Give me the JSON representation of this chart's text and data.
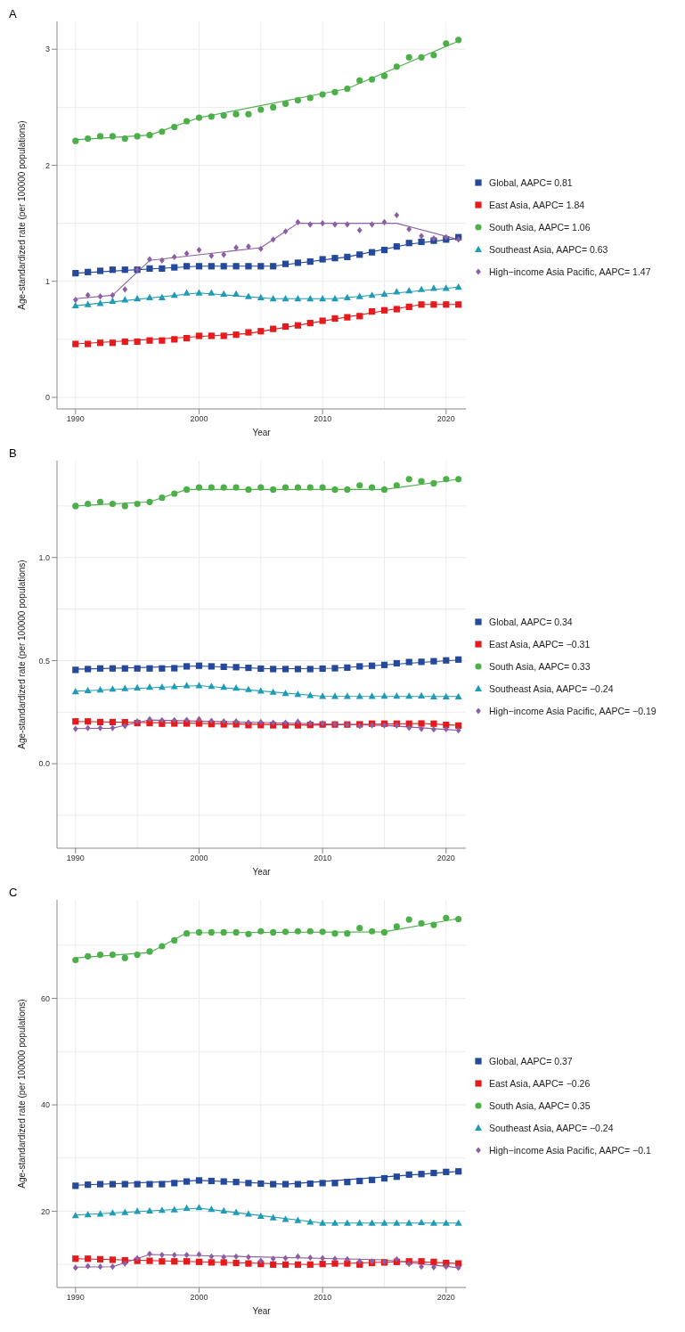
{
  "chart_data": [
    {
      "type": "scatter",
      "title": "A",
      "xlabel": "Year",
      "ylabel": "Age-standardized rate (per 100000 populations)",
      "x": [
        1990,
        1991,
        1992,
        1993,
        1994,
        1995,
        1996,
        1997,
        1998,
        1999,
        2000,
        2001,
        2002,
        2003,
        2004,
        2005,
        2006,
        2007,
        2008,
        2009,
        2010,
        2011,
        2012,
        2013,
        2014,
        2015,
        2016,
        2017,
        2018,
        2019,
        2020,
        2021
      ],
      "xlim": [
        1988.5,
        2021.6
      ],
      "xticks": [
        1990,
        2000,
        2010,
        2020
      ],
      "ylim": [
        -0.1,
        3.24
      ],
      "yticks": [
        0,
        1,
        2,
        3
      ],
      "grid": true,
      "legend": "right",
      "series": [
        {
          "name": "Global, AAPC= 0.81",
          "color": "#24489a",
          "marker": "square",
          "values": [
            1.07,
            1.08,
            1.09,
            1.1,
            1.1,
            1.1,
            1.11,
            1.11,
            1.12,
            1.13,
            1.13,
            1.13,
            1.13,
            1.13,
            1.13,
            1.13,
            1.13,
            1.15,
            1.16,
            1.17,
            1.19,
            1.2,
            1.21,
            1.23,
            1.25,
            1.27,
            1.3,
            1.33,
            1.34,
            1.35,
            1.36,
            1.38
          ]
        },
        {
          "name": "East Asia, AAPC= 1.84",
          "color": "#e41a1c",
          "marker": "square",
          "values": [
            0.46,
            0.46,
            0.47,
            0.47,
            0.48,
            0.48,
            0.49,
            0.49,
            0.5,
            0.51,
            0.53,
            0.53,
            0.53,
            0.54,
            0.56,
            0.57,
            0.59,
            0.61,
            0.62,
            0.64,
            0.66,
            0.68,
            0.69,
            0.7,
            0.74,
            0.75,
            0.76,
            0.78,
            0.8,
            0.8,
            0.8,
            0.8
          ]
        },
        {
          "name": "South Asia, AAPC= 1.06",
          "color": "#4daf4a",
          "marker": "circle",
          "values": [
            2.21,
            2.23,
            2.25,
            2.25,
            2.23,
            2.25,
            2.26,
            2.29,
            2.33,
            2.38,
            2.41,
            2.42,
            2.43,
            2.44,
            2.44,
            2.48,
            2.5,
            2.53,
            2.56,
            2.58,
            2.61,
            2.63,
            2.66,
            2.73,
            2.74,
            2.77,
            2.85,
            2.93,
            2.93,
            2.95,
            3.05,
            3.08
          ]
        },
        {
          "name": "Southeast Asia, AAPC= 0.63",
          "color": "#1f9bb5",
          "marker": "triangle",
          "values": [
            0.79,
            0.8,
            0.81,
            0.83,
            0.84,
            0.85,
            0.86,
            0.86,
            0.88,
            0.9,
            0.9,
            0.9,
            0.89,
            0.89,
            0.87,
            0.86,
            0.85,
            0.85,
            0.85,
            0.85,
            0.85,
            0.85,
            0.86,
            0.87,
            0.88,
            0.89,
            0.91,
            0.92,
            0.93,
            0.94,
            0.94,
            0.95
          ]
        },
        {
          "name": "High−income Asia Pacific, AAPC= 1.47",
          "color": "#8c5ea3",
          "marker": "diamond",
          "values": [
            0.84,
            0.88,
            0.87,
            0.88,
            0.93,
            1.1,
            1.19,
            1.18,
            1.21,
            1.24,
            1.27,
            1.22,
            1.23,
            1.29,
            1.3,
            1.28,
            1.36,
            1.43,
            1.51,
            1.49,
            1.5,
            1.49,
            1.49,
            1.44,
            1.49,
            1.51,
            1.57,
            1.45,
            1.39,
            1.37,
            1.38,
            1.36
          ]
        },
        {
          "type": "line",
          "color": "#24489a",
          "x": [
            1990,
            2000,
            2006,
            2012,
            2017,
            2021
          ],
          "values": [
            1.07,
            1.13,
            1.13,
            1.21,
            1.32,
            1.37
          ]
        },
        {
          "type": "line",
          "color": "#e41a1c",
          "x": [
            1990,
            2004,
            2018,
            2021
          ],
          "values": [
            0.46,
            0.55,
            0.8,
            0.8
          ]
        },
        {
          "type": "line",
          "color": "#4daf4a",
          "x": [
            1990,
            1996,
            2000,
            2012,
            2021
          ],
          "values": [
            2.22,
            2.26,
            2.41,
            2.66,
            3.07
          ]
        },
        {
          "type": "line",
          "color": "#1f9bb5",
          "x": [
            1990,
            2000,
            2006,
            2011,
            2021
          ],
          "values": [
            0.79,
            0.9,
            0.85,
            0.85,
            0.95
          ]
        },
        {
          "type": "line",
          "color": "#8c5ea3",
          "x": [
            1990,
            1993,
            1996,
            2005,
            2008,
            2016,
            2021
          ],
          "values": [
            0.85,
            0.88,
            1.18,
            1.29,
            1.5,
            1.5,
            1.36
          ]
        }
      ]
    },
    {
      "type": "scatter",
      "title": "B",
      "xlabel": "Year",
      "ylabel": "Age-standardized rate (per 100000 populations)",
      "x": [
        1990,
        1991,
        1992,
        1993,
        1994,
        1995,
        1996,
        1997,
        1998,
        1999,
        2000,
        2001,
        2002,
        2003,
        2004,
        2005,
        2006,
        2007,
        2008,
        2009,
        2010,
        2011,
        2012,
        2013,
        2014,
        2015,
        2016,
        2017,
        2018,
        2019,
        2020,
        2021
      ],
      "xlim": [
        1988.5,
        2021.6
      ],
      "xticks": [
        1990,
        2000,
        2010,
        2020
      ],
      "ylim": [
        -0.41,
        1.47
      ],
      "yticks": [
        {
          "value": 0,
          "label": "0.0"
        },
        {
          "value": 0.5,
          "label": "0.5"
        },
        {
          "value": 1,
          "label": "1.0"
        }
      ],
      "grid": true,
      "legend": "right",
      "series": [
        {
          "name": "Global, AAPC= 0.34",
          "color": "#24489a",
          "marker": "square",
          "values": [
            0.455,
            0.459,
            0.462,
            0.462,
            0.462,
            0.462,
            0.462,
            0.462,
            0.463,
            0.472,
            0.475,
            0.472,
            0.47,
            0.468,
            0.465,
            0.461,
            0.459,
            0.459,
            0.459,
            0.459,
            0.461,
            0.463,
            0.466,
            0.472,
            0.475,
            0.479,
            0.487,
            0.493,
            0.494,
            0.497,
            0.501,
            0.505
          ]
        },
        {
          "name": "East Asia, AAPC= −0.31",
          "color": "#e41a1c",
          "marker": "square",
          "values": [
            0.205,
            0.205,
            0.202,
            0.202,
            0.201,
            0.197,
            0.197,
            0.194,
            0.195,
            0.195,
            0.195,
            0.192,
            0.191,
            0.191,
            0.187,
            0.187,
            0.186,
            0.186,
            0.186,
            0.188,
            0.19,
            0.19,
            0.19,
            0.191,
            0.194,
            0.194,
            0.194,
            0.194,
            0.195,
            0.194,
            0.188,
            0.185
          ]
        },
        {
          "name": "South Asia, AAPC= 0.33",
          "color": "#4daf4a",
          "marker": "circle",
          "values": [
            1.25,
            1.26,
            1.27,
            1.26,
            1.25,
            1.26,
            1.27,
            1.29,
            1.31,
            1.33,
            1.34,
            1.34,
            1.34,
            1.34,
            1.33,
            1.34,
            1.33,
            1.34,
            1.34,
            1.34,
            1.34,
            1.33,
            1.33,
            1.35,
            1.34,
            1.33,
            1.35,
            1.38,
            1.37,
            1.36,
            1.38,
            1.38
          ]
        },
        {
          "name": "Southeast Asia, AAPC= −0.24",
          "color": "#1f9bb5",
          "marker": "triangle",
          "values": [
            0.35,
            0.355,
            0.358,
            0.362,
            0.365,
            0.368,
            0.371,
            0.371,
            0.374,
            0.379,
            0.379,
            0.375,
            0.371,
            0.367,
            0.36,
            0.353,
            0.347,
            0.341,
            0.337,
            0.331,
            0.327,
            0.327,
            0.327,
            0.327,
            0.327,
            0.328,
            0.328,
            0.328,
            0.329,
            0.325,
            0.325,
            0.325
          ]
        },
        {
          "name": "High−income Asia Pacific, AAPC= −0.19",
          "color": "#8c5ea3",
          "marker": "diamond",
          "values": [
            0.169,
            0.173,
            0.173,
            0.173,
            0.183,
            0.205,
            0.216,
            0.211,
            0.211,
            0.212,
            0.216,
            0.208,
            0.205,
            0.205,
            0.2,
            0.202,
            0.199,
            0.199,
            0.204,
            0.197,
            0.196,
            0.192,
            0.189,
            0.183,
            0.186,
            0.186,
            0.185,
            0.174,
            0.169,
            0.166,
            0.167,
            0.162
          ]
        },
        {
          "type": "line",
          "color": "#24489a",
          "x": [
            1990,
            2000,
            2006,
            2011,
            2021
          ],
          "values": [
            0.458,
            0.474,
            0.46,
            0.463,
            0.503
          ]
        },
        {
          "type": "line",
          "color": "#e41a1c",
          "x": [
            1990,
            2009,
            2018,
            2021
          ],
          "values": [
            0.205,
            0.187,
            0.195,
            0.186
          ]
        },
        {
          "type": "line",
          "color": "#4daf4a",
          "x": [
            1990,
            1996,
            1999,
            2015,
            2021
          ],
          "values": [
            1.25,
            1.27,
            1.33,
            1.33,
            1.38
          ]
        },
        {
          "type": "line",
          "color": "#1f9bb5",
          "x": [
            1990,
            2000,
            2010,
            2021
          ],
          "values": [
            0.352,
            0.379,
            0.327,
            0.326
          ]
        },
        {
          "type": "line",
          "color": "#8c5ea3",
          "x": [
            1990,
            1993,
            1996,
            2015,
            2021
          ],
          "values": [
            0.17,
            0.172,
            0.212,
            0.186,
            0.162
          ]
        }
      ]
    },
    {
      "type": "scatter",
      "title": "C",
      "xlabel": "Year",
      "ylabel": "Age-standardized rate (per 100000 populations)",
      "x": [
        1990,
        1991,
        1992,
        1993,
        1994,
        1995,
        1996,
        1997,
        1998,
        1999,
        2000,
        2001,
        2002,
        2003,
        2004,
        2005,
        2006,
        2007,
        2008,
        2009,
        2010,
        2011,
        2012,
        2013,
        2014,
        2015,
        2016,
        2017,
        2018,
        2019,
        2020,
        2021
      ],
      "xlim": [
        1988.5,
        2021.6
      ],
      "xticks": [
        1990,
        2000,
        2010,
        2020
      ],
      "ylim": [
        5.7,
        78.5
      ],
      "yticks": [
        20,
        40,
        60
      ],
      "grid": true,
      "legend": "right",
      "series": [
        {
          "name": "Global, AAPC= 0.37",
          "color": "#24489a",
          "marker": "square",
          "values": [
            24.8,
            25.0,
            25.1,
            25.1,
            25.1,
            25.1,
            25.1,
            25.1,
            25.3,
            25.6,
            25.8,
            25.7,
            25.6,
            25.5,
            25.3,
            25.2,
            25.1,
            25.1,
            25.1,
            25.2,
            25.3,
            25.3,
            25.5,
            25.7,
            25.9,
            26.2,
            26.5,
            26.9,
            27.0,
            27.2,
            27.4,
            27.5
          ]
        },
        {
          "name": "East Asia, AAPC= −0.26",
          "color": "#e41a1c",
          "marker": "square",
          "values": [
            11.1,
            11.1,
            11.0,
            10.9,
            10.8,
            10.7,
            10.7,
            10.6,
            10.6,
            10.6,
            10.5,
            10.4,
            10.4,
            10.3,
            10.2,
            10.1,
            10.0,
            10.0,
            10.0,
            10.0,
            10.1,
            10.2,
            10.2,
            10.0,
            10.3,
            10.4,
            10.5,
            10.6,
            10.6,
            10.5,
            10.3,
            10.2
          ]
        },
        {
          "name": "South Asia, AAPC= 0.35",
          "color": "#4daf4a",
          "marker": "circle",
          "values": [
            67.2,
            67.9,
            68.2,
            68.2,
            67.6,
            68.2,
            68.8,
            69.8,
            70.9,
            72.2,
            72.4,
            72.4,
            72.4,
            72.4,
            72.1,
            72.6,
            72.4,
            72.5,
            72.6,
            72.6,
            72.5,
            72.2,
            72.2,
            73.2,
            72.6,
            72.4,
            73.5,
            74.8,
            74.1,
            73.8,
            75.1,
            74.9
          ]
        },
        {
          "name": "Southeast Asia, AAPC= −0.24",
          "color": "#1f9bb5",
          "marker": "triangle",
          "values": [
            19.2,
            19.4,
            19.5,
            19.7,
            19.8,
            20.0,
            20.1,
            20.2,
            20.3,
            20.6,
            20.7,
            20.4,
            20.1,
            19.8,
            19.5,
            19.1,
            18.8,
            18.5,
            18.3,
            18.0,
            17.8,
            17.8,
            17.8,
            17.8,
            17.8,
            17.8,
            17.8,
            17.8,
            17.9,
            17.8,
            17.8,
            17.8
          ]
        },
        {
          "name": "High−income Asia Pacific, AAPC= −0.1",
          "color": "#8c5ea3",
          "marker": "diamond",
          "values": [
            9.4,
            9.7,
            9.6,
            9.6,
            10.2,
            11.2,
            12.0,
            11.8,
            11.8,
            11.8,
            11.9,
            11.5,
            11.4,
            11.5,
            11.4,
            10.7,
            11.1,
            11.2,
            11.5,
            11.3,
            11.2,
            11.1,
            11.0,
            10.6,
            10.6,
            10.5,
            11.0,
            10.1,
            9.6,
            9.5,
            9.6,
            9.4
          ]
        },
        {
          "type": "line",
          "color": "#24489a",
          "x": [
            1990,
            2000,
            2007,
            2021
          ],
          "values": [
            24.9,
            25.8,
            25.1,
            27.5
          ]
        },
        {
          "type": "line",
          "color": "#e41a1c",
          "x": [
            1990,
            2009,
            2017,
            2021
          ],
          "values": [
            11.1,
            10.0,
            10.6,
            10.2
          ]
        },
        {
          "type": "line",
          "color": "#4daf4a",
          "x": [
            1990,
            1996,
            1999,
            2015,
            2021
          ],
          "values": [
            67.6,
            68.6,
            72.3,
            72.5,
            75.0
          ]
        },
        {
          "type": "line",
          "color": "#1f9bb5",
          "x": [
            1990,
            2000,
            2010,
            2021
          ],
          "values": [
            19.3,
            20.6,
            17.8,
            17.8
          ]
        },
        {
          "type": "line",
          "color": "#8c5ea3",
          "x": [
            1990,
            1993,
            1996,
            2015,
            2021
          ],
          "values": [
            9.5,
            9.6,
            11.9,
            10.9,
            9.4
          ]
        }
      ]
    }
  ]
}
